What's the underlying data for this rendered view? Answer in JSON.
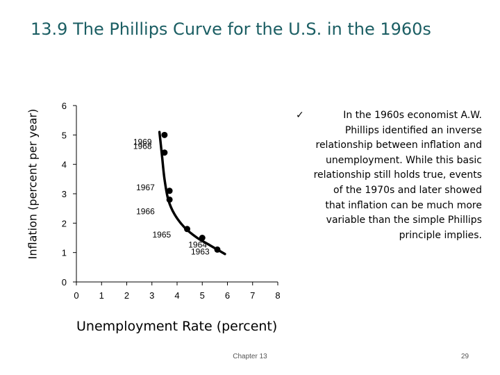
{
  "slide": {
    "title": "13.9 The Phillips Curve for the U.S. in the 1960s",
    "footer": "Chapter 13",
    "page_number": "29",
    "bullet_icon": "check-icon",
    "bullet_text": "In the 1960s economist A.W. Phillips identified an inverse relationship between inflation and unemployment. While this basic relationship still holds true, events of the 1970s and later showed that inflation can be much more variable than the simple Phillips principle implies."
  },
  "chart_data": {
    "type": "scatter",
    "xlabel": "Unemployment Rate (percent)",
    "ylabel": "Inflation (percent per year)",
    "xlim": [
      0,
      8
    ],
    "ylim": [
      0,
      6
    ],
    "x_ticks": [
      "0",
      "1",
      "2",
      "3",
      "4",
      "5",
      "6",
      "7",
      "8"
    ],
    "y_ticks": [
      "0",
      "1",
      "2",
      "3",
      "4",
      "5",
      "6"
    ],
    "grid": false,
    "points": [
      {
        "year": "1969",
        "x": 3.5,
        "y": 5.0
      },
      {
        "year": "1968",
        "x": 3.5,
        "y": 4.4
      },
      {
        "year": "1967",
        "x": 3.7,
        "y": 3.1
      },
      {
        "year": "1966",
        "x": 3.7,
        "y": 2.8
      },
      {
        "year": "1965",
        "x": 4.4,
        "y": 1.8
      },
      {
        "year": "1964",
        "x": 5.0,
        "y": 1.5
      },
      {
        "year": "1963",
        "x": 5.6,
        "y": 1.1
      }
    ],
    "curve": [
      {
        "x": 3.3,
        "y": 5.1
      },
      {
        "x": 3.4,
        "y": 4.3
      },
      {
        "x": 3.5,
        "y": 3.5
      },
      {
        "x": 3.65,
        "y": 2.8
      },
      {
        "x": 3.9,
        "y": 2.3
      },
      {
        "x": 4.3,
        "y": 1.85
      },
      {
        "x": 4.8,
        "y": 1.5
      },
      {
        "x": 5.3,
        "y": 1.25
      },
      {
        "x": 5.9,
        "y": 0.95
      }
    ],
    "colors": {
      "points": "#000000",
      "curve": "#000000",
      "axis": "#000000"
    }
  }
}
